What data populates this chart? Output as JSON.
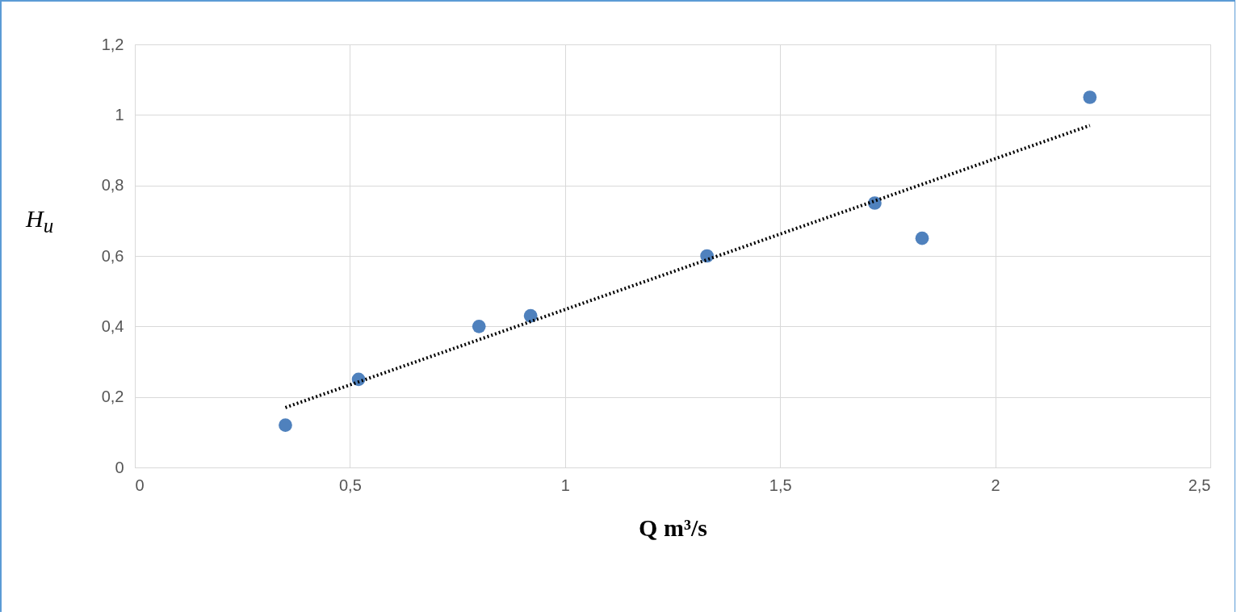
{
  "chart_data": {
    "type": "scatter",
    "xlabel": "Q m³/s",
    "ylabel": "H$_{u}$",
    "xlim": [
      0,
      2.5
    ],
    "ylim": [
      0,
      1.2
    ],
    "xticks": [
      0,
      {
        "value": 0.5,
        "label": "0,5"
      },
      1,
      {
        "value": 1.5,
        "label": "1,5"
      },
      2,
      {
        "value": 2.5,
        "label": "2,5"
      }
    ],
    "yticks": [
      0,
      {
        "value": 0.2,
        "label": "0,2"
      },
      {
        "value": 0.4,
        "label": "0,4"
      },
      {
        "value": 0.6,
        "label": "0,6"
      },
      {
        "value": 0.8,
        "label": "0,8"
      },
      1,
      {
        "value": 1.2,
        "label": "1,2"
      }
    ],
    "grid": true,
    "series": [
      {
        "marker": "circle",
        "color": "#4f81bd",
        "x": [
          0.35,
          0.52,
          0.8,
          0.92,
          1.33,
          1.72,
          1.83,
          2.22
        ],
        "values": [
          0.12,
          0.25,
          0.4,
          0.43,
          0.6,
          0.75,
          0.65,
          1.05
        ]
      },
      {
        "type": "line",
        "color": "#000000",
        "line_style": "dotted",
        "x": [
          0.35,
          2.22
        ],
        "values": [
          0.17,
          0.97
        ]
      }
    ]
  }
}
